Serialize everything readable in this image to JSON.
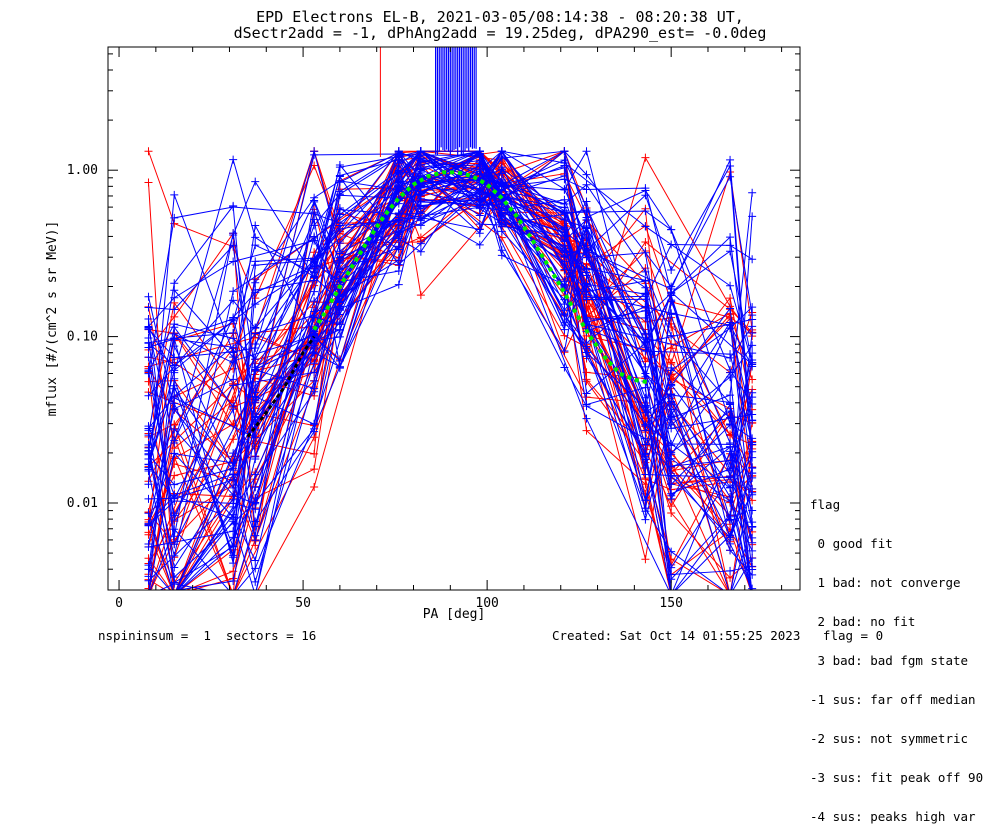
{
  "title_line1": "EPD Electrons EL-B, 2021-03-05/08:14:38 - 08:20:38 UT,",
  "title_line2": "dSectr2add = -1, dPhAng2add = 19.25deg, dPA290_est=  -0.0deg",
  "footer_left": "nspininsum =  1  sectors = 16",
  "footer_right": "Created: Sat Oct 14 01:55:25 2023   flag = 0",
  "legend": {
    "title": "flag",
    "items": [
      " 0 good fit",
      " 1 bad: not converge",
      " 2 bad: no fit",
      " 3 bad: bad fgm state",
      "-1 sus: far off median",
      "-2 sus: not symmetric",
      "-3 sus: fit peak off 90",
      "-4 sus: peaks high var"
    ]
  },
  "colors": {
    "red": "#ff0000",
    "blue": "#0000ff",
    "green": "#00ee00",
    "black": "#000000"
  },
  "chart_data": {
    "type": "line",
    "xlabel": "PA [deg]",
    "ylabel": "mflux [#/(cm^2 s sr MeV)]",
    "xlim": [
      -3,
      185
    ],
    "ylim": [
      0.003,
      5.5
    ],
    "yscale": "log",
    "xticks": [
      0,
      50,
      100,
      150
    ],
    "yticks": [
      0.01,
      0.1,
      1.0
    ],
    "ytick_labels": [
      "0.01",
      "0.10",
      "1.00"
    ],
    "pa_bins": [
      8,
      15,
      31,
      37,
      53,
      60,
      76,
      82,
      98,
      104,
      121,
      127,
      143,
      150,
      166,
      172
    ],
    "median_profile": [
      0.011,
      0.015,
      0.022,
      0.03,
      0.12,
      0.27,
      0.7,
      0.9,
      0.9,
      0.75,
      0.38,
      0.2,
      0.055,
      0.03,
      0.018,
      0.014
    ],
    "red_series_count": 40,
    "blue_series_count": 60,
    "green_fit": {
      "x": [
        53,
        56,
        60,
        64,
        68,
        72,
        76,
        80,
        84,
        88,
        92,
        96,
        100,
        104,
        108,
        112,
        116,
        120,
        124,
        128,
        132,
        136,
        140,
        144
      ],
      "y": [
        0.11,
        0.14,
        0.2,
        0.28,
        0.39,
        0.53,
        0.68,
        0.82,
        0.92,
        0.97,
        0.97,
        0.92,
        0.82,
        0.68,
        0.53,
        0.39,
        0.28,
        0.2,
        0.14,
        0.1,
        0.075,
        0.06,
        0.055,
        0.053
      ]
    },
    "black_fit": {
      "x": [
        35,
        40,
        45,
        50,
        53
      ],
      "y": [
        0.025,
        0.035,
        0.05,
        0.08,
        0.1
      ]
    },
    "spikes": {
      "red_x": 71,
      "blue_x_from": 86,
      "blue_x_to": 97,
      "y_top": 5.5,
      "y_bottom": 1.2
    }
  }
}
